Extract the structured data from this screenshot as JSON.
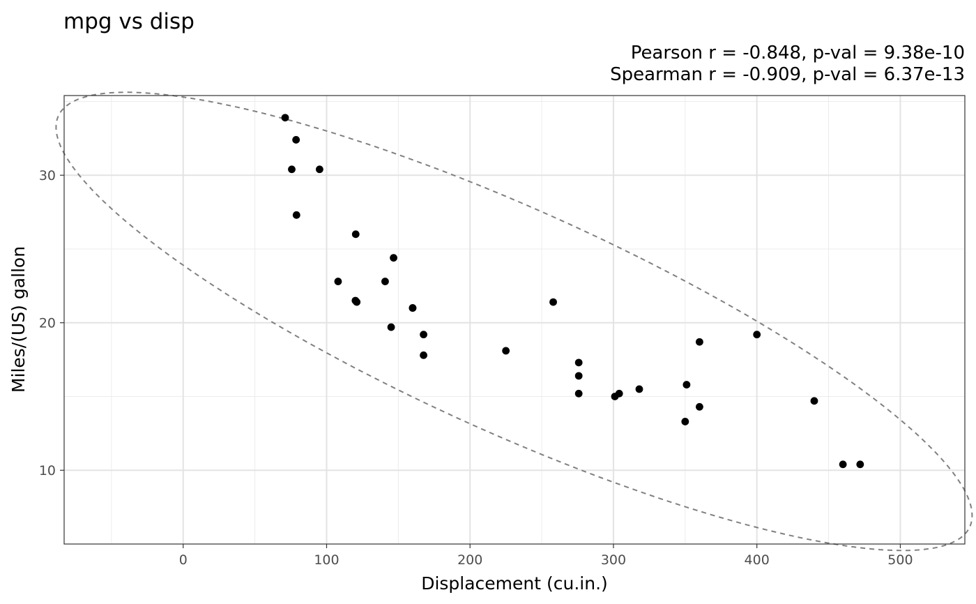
{
  "chart_data": {
    "type": "scatter",
    "title": "mpg vs disp",
    "subtitle_lines": [
      "Pearson r = -0.848, p-val = 9.38e-10",
      "Spearman r = -0.909, p-val = 6.37e-13"
    ],
    "xlabel": "Displacement (cu.in.)",
    "ylabel": "Miles/(US) gallon",
    "xlim": [
      -83,
      545
    ],
    "ylim": [
      5,
      35.4
    ],
    "xticks": [
      0,
      100,
      200,
      300,
      400,
      500
    ],
    "xticklabels": [
      "0",
      "100",
      "200",
      "300",
      "400",
      "500"
    ],
    "yticks": [
      10,
      20,
      30
    ],
    "yticklabels": [
      "10",
      "20",
      "30"
    ],
    "grid": true,
    "legend": "none",
    "point_color": "#000000",
    "ellipse_color": "#808080",
    "points": [
      {
        "x": 160,
        "y": 21.0
      },
      {
        "x": 160,
        "y": 21.0
      },
      {
        "x": 108,
        "y": 22.8
      },
      {
        "x": 258,
        "y": 21.4
      },
      {
        "x": 360,
        "y": 18.7
      },
      {
        "x": 225,
        "y": 18.1
      },
      {
        "x": 360,
        "y": 14.3
      },
      {
        "x": 146.7,
        "y": 24.4
      },
      {
        "x": 140.8,
        "y": 22.8
      },
      {
        "x": 167.6,
        "y": 19.2
      },
      {
        "x": 167.6,
        "y": 17.8
      },
      {
        "x": 275.8,
        "y": 16.4
      },
      {
        "x": 275.8,
        "y": 17.3
      },
      {
        "x": 275.8,
        "y": 15.2
      },
      {
        "x": 472,
        "y": 10.4
      },
      {
        "x": 460,
        "y": 10.4
      },
      {
        "x": 440,
        "y": 14.7
      },
      {
        "x": 78.7,
        "y": 32.4
      },
      {
        "x": 75.7,
        "y": 30.4
      },
      {
        "x": 71.1,
        "y": 33.9
      },
      {
        "x": 120.1,
        "y": 21.5
      },
      {
        "x": 318,
        "y": 15.5
      },
      {
        "x": 304,
        "y": 15.2
      },
      {
        "x": 350,
        "y": 13.3
      },
      {
        "x": 400,
        "y": 19.2
      },
      {
        "x": 79,
        "y": 27.3
      },
      {
        "x": 120.3,
        "y": 26.0
      },
      {
        "x": 95.1,
        "y": 30.4
      },
      {
        "x": 351,
        "y": 15.8
      },
      {
        "x": 145,
        "y": 19.7
      },
      {
        "x": 301,
        "y": 15.0
      },
      {
        "x": 121,
        "y": 21.4
      }
    ],
    "ellipse": {
      "type": "confidence",
      "level": 0.95
    }
  }
}
